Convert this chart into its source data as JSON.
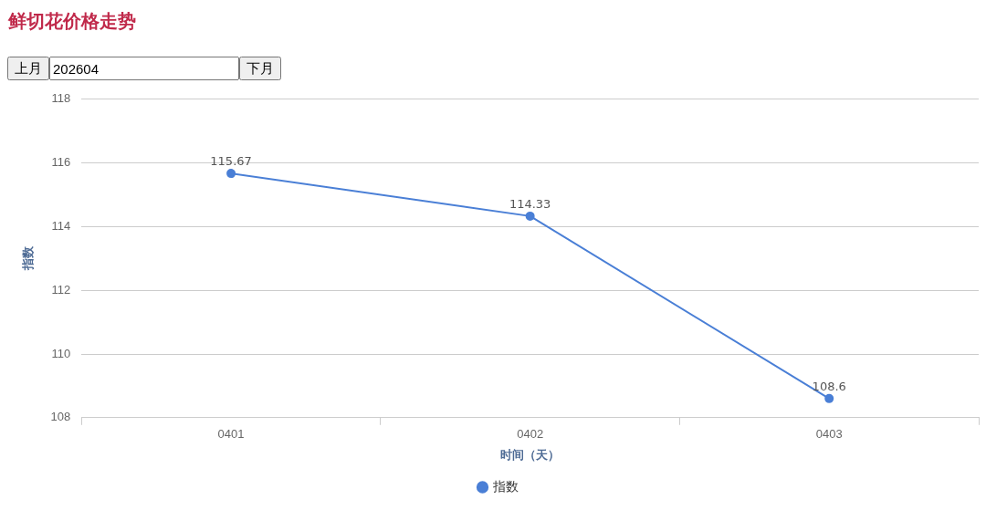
{
  "chart_data": {
    "type": "line",
    "title": "鲜切花价格走势",
    "annotations": [
      "上月",
      "202604",
      "下月"
    ],
    "xlabel": "时间（天）",
    "ylabel": "指数",
    "categories": [
      "0401",
      "0402",
      "0403"
    ],
    "series": [
      {
        "name": "指数",
        "color": "#4a7fd6",
        "values": [
          115.67,
          114.33,
          108.6
        ]
      }
    ],
    "ylim": [
      108,
      118
    ],
    "yticks": [
      108,
      110,
      112,
      114,
      116,
      118
    ],
    "grid": "y",
    "legend": "bottom",
    "marker": "circle",
    "line_style": "solid",
    "data_labels": true
  }
}
